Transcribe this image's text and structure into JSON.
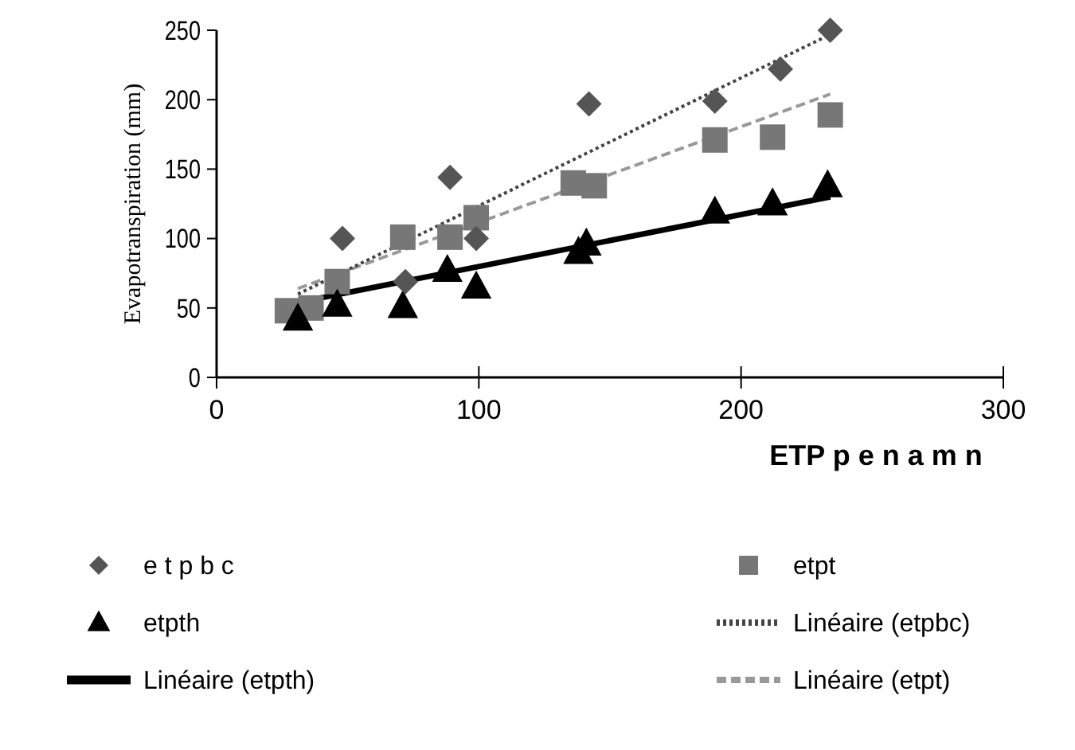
{
  "chart_data": {
    "type": "scatter",
    "xlabel": "ETP p e n a m n",
    "ylabel": "Evapotranspiration (mm)",
    "xlim": [
      0,
      300
    ],
    "xticks": [
      0,
      100,
      200,
      300
    ],
    "ylim": [
      0,
      250
    ],
    "yticks": [
      0,
      50,
      100,
      150,
      200,
      250
    ],
    "grid": false,
    "legend": "bottom",
    "series": [
      {
        "name": "e t p b c",
        "marker": "diamond",
        "color": "#555555",
        "x": [
          48,
          72,
          89,
          99,
          142,
          190,
          215,
          234
        ],
        "values": [
          100,
          69,
          144,
          100,
          197,
          199,
          222,
          250
        ]
      },
      {
        "name": "etpth",
        "marker": "triangle",
        "color": "#000000",
        "x": [
          31,
          46,
          71,
          88,
          99,
          138,
          141,
          190,
          212,
          233
        ],
        "values": [
          42,
          52,
          51,
          77,
          65,
          90,
          96,
          119,
          125,
          138
        ]
      },
      {
        "name": "Linéaire  (etpth)",
        "type": "line",
        "marker": "none",
        "line_style": "solid",
        "color": "#000000",
        "x": [
          31,
          234
        ],
        "values": [
          54,
          130
        ]
      },
      {
        "name": "etpt",
        "marker": "square",
        "color": "#777777",
        "x": [
          27,
          36,
          46,
          71,
          89,
          99,
          136,
          144,
          190,
          212,
          234
        ],
        "values": [
          48,
          50,
          69,
          101,
          101,
          115,
          140,
          138,
          171,
          173,
          189
        ]
      },
      {
        "name": "Linéaire    (etpbc)",
        "type": "line",
        "marker": "none",
        "line_style": "dotted",
        "color": "#444444",
        "x": [
          31,
          234
        ],
        "values": [
          60,
          247
        ]
      },
      {
        "name": "Linéaire    (etpt)",
        "type": "line",
        "marker": "none",
        "line_style": "dashed",
        "color": "#999999",
        "x": [
          31,
          234
        ],
        "values": [
          64,
          204
        ]
      }
    ]
  }
}
